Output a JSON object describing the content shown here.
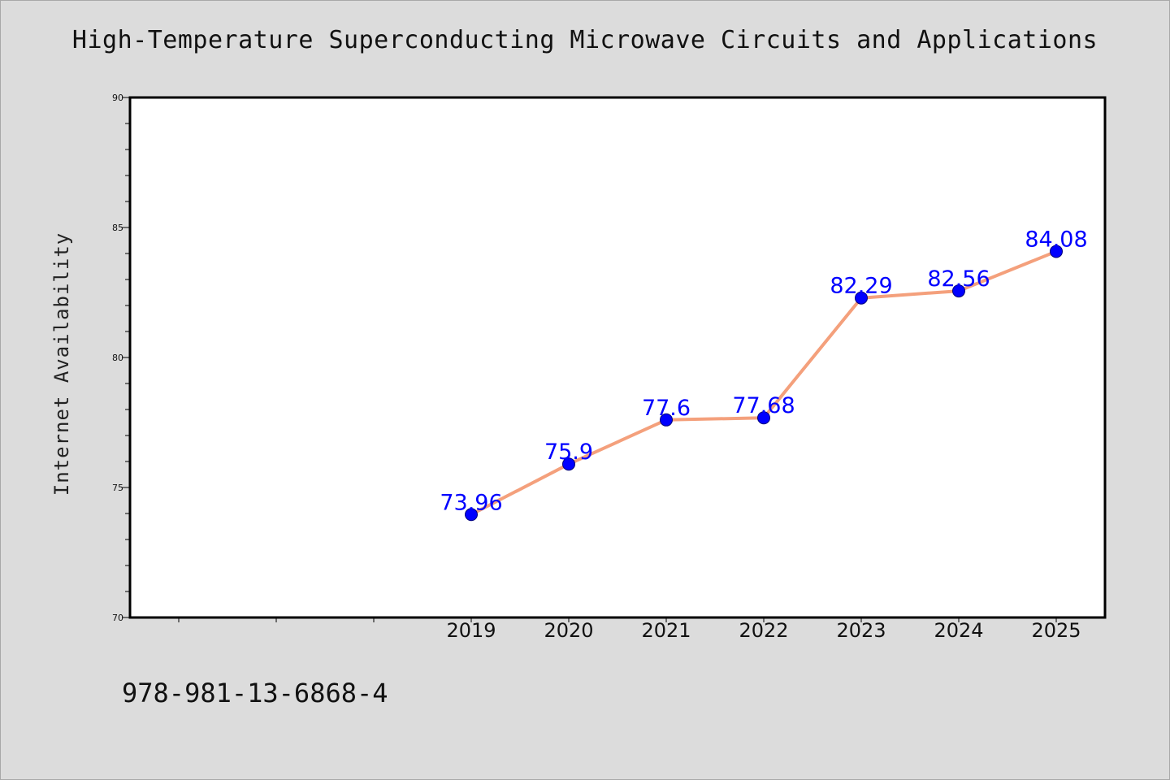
{
  "chart_data": {
    "type": "line",
    "title": "High-Temperature Superconducting Microwave Circuits and Applications",
    "xlabel": "",
    "ylabel": "Internet Availability",
    "categories": [
      "2019",
      "2020",
      "2021",
      "2022",
      "2023",
      "2024",
      "2025"
    ],
    "values": [
      73.96,
      75.9,
      77.6,
      77.68,
      82.29,
      82.56,
      84.08
    ],
    "data_labels": [
      "73.96",
      "75.9",
      "77.6",
      "77.68",
      "82.29",
      "82.56",
      "84.08"
    ],
    "ylim": [
      70,
      90
    ],
    "y_ticks": [
      "70",
      "75",
      "80",
      "85",
      "90"
    ],
    "x_domain_slots": 10,
    "first_category_slot": 3.5,
    "grid": false,
    "line_color": "#f4a07c",
    "marker_color": "#0000ff",
    "label_color": "#0000ff"
  },
  "footer": {
    "isbn": "978-981-13-6868-4"
  }
}
